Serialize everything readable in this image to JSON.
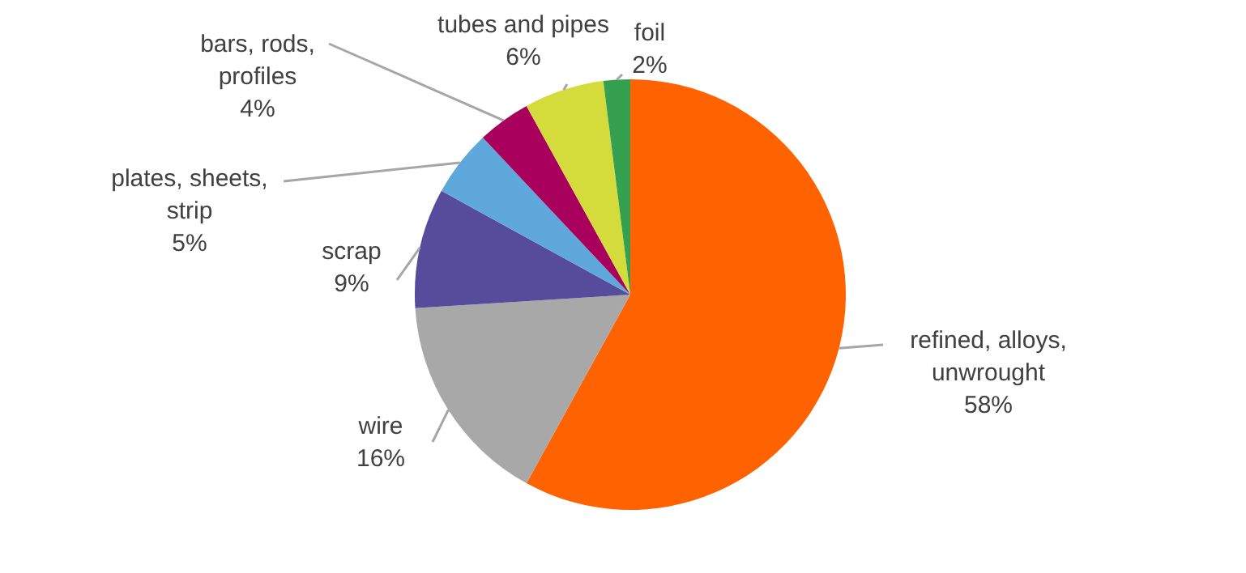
{
  "chart_data": {
    "type": "pie",
    "categories": [
      "refined, alloys, unwrought",
      "wire",
      "scrap",
      "plates, sheets, strip",
      "bars, rods, profiles",
      "tubes and pipes",
      "foil"
    ],
    "values": [
      58,
      16,
      9,
      5,
      4,
      6,
      2
    ],
    "value_labels": [
      "58%",
      "16%",
      "9%",
      "5%",
      "4%",
      "6%",
      "2%"
    ],
    "colors": [
      "#ff6200",
      "#a8a8a8",
      "#574c9c",
      "#5ea8dc",
      "#a8005c",
      "#d4dc3c",
      "#34a050"
    ],
    "legend": false
  }
}
